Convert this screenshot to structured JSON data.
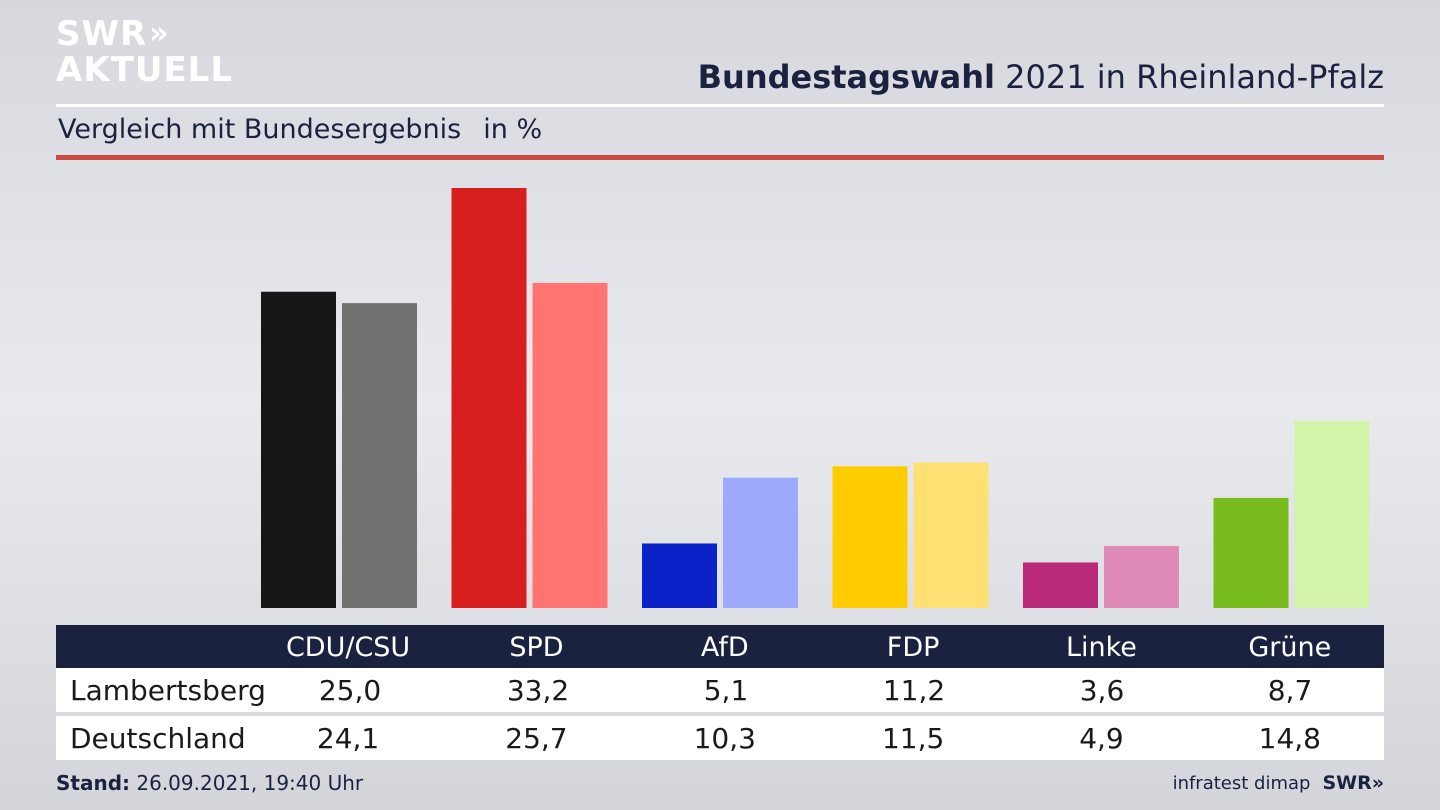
{
  "logo": {
    "line1": "SWR",
    "chevrons": "»",
    "line2": "AKTUELL"
  },
  "header": {
    "title_bold": "Bundestagswahl",
    "title_rest": "2021 in Rheinland-Pfalz",
    "subtitle": "Vergleich mit Bundesergebnis",
    "unit": "in %"
  },
  "chart_data": {
    "type": "bar",
    "categories": [
      "CDU/CSU",
      "SPD",
      "AfD",
      "FDP",
      "Linke",
      "Grüne"
    ],
    "series": [
      {
        "name": "Lambertsberg",
        "values": [
          25.0,
          33.2,
          5.1,
          11.2,
          3.6,
          8.7
        ],
        "colors": [
          "#161616",
          "#d81e1e",
          "#0a22c8",
          "#ffcc00",
          "#b82a78",
          "#78bc1e"
        ]
      },
      {
        "name": "Deutschland",
        "values": [
          24.1,
          25.7,
          10.3,
          11.5,
          4.9,
          14.8
        ],
        "colors": [
          "#72716f",
          "#ff7470",
          "#9daafb",
          "#ffe072",
          "#e08ab8",
          "#d2f4a8"
        ]
      }
    ],
    "ylim": [
      0,
      33.2
    ],
    "grid": false
  },
  "table": {
    "rows": [
      {
        "label": "Lambertsberg",
        "values": [
          "25,0",
          "33,2",
          "5,1",
          "11,2",
          "3,6",
          "8,7"
        ]
      },
      {
        "label": "Deutschland",
        "values": [
          "24,1",
          "25,7",
          "10,3",
          "11,5",
          "4,9",
          "14,8"
        ]
      }
    ]
  },
  "footer": {
    "stand_label": "Stand:",
    "stand_value": "26.09.2021, 19:40 Uhr",
    "source": "infratest dimap",
    "brand": "SWR»"
  },
  "colors": {
    "navy": "#1b2240",
    "accent_red": "#cc4b3d"
  }
}
